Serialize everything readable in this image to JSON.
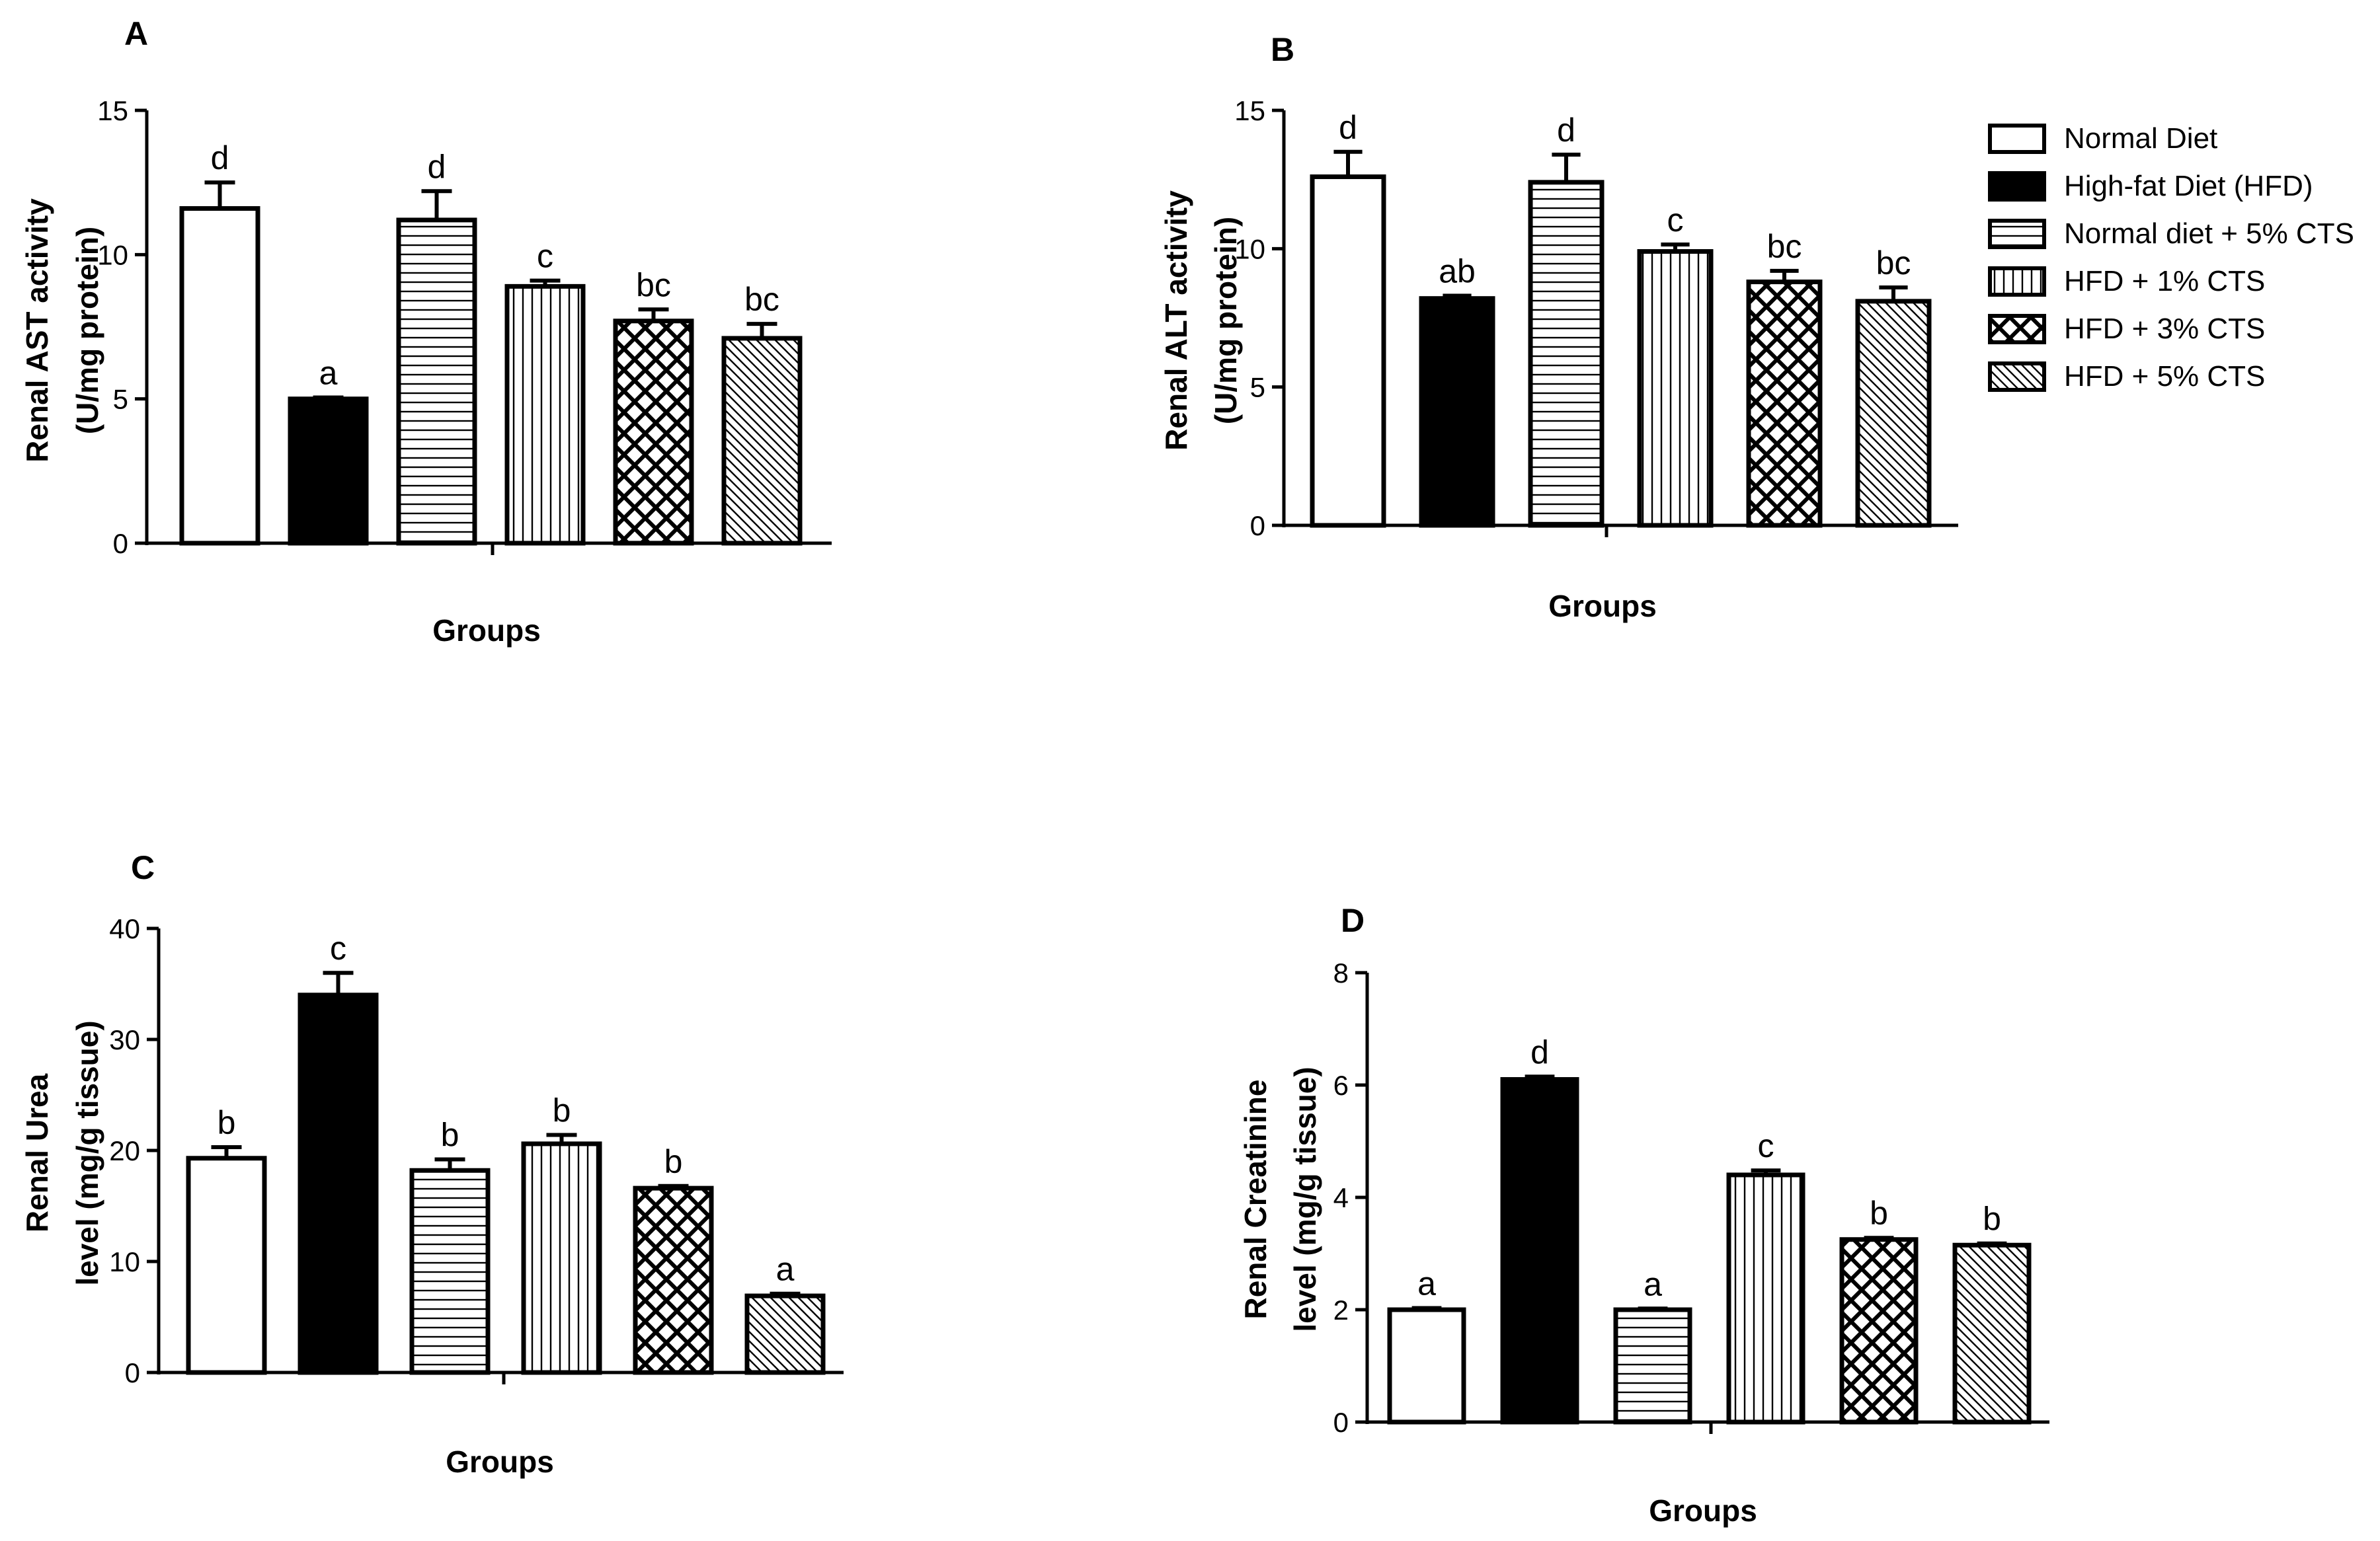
{
  "chart_data": [
    {
      "panel": "A",
      "type": "bar",
      "title": "",
      "xlabel": "Groups",
      "ylabel": [
        "Renal AST activity",
        "(U/mg protein)"
      ],
      "ylim": [
        0,
        15
      ],
      "yticks": [
        "0",
        "5",
        "10",
        "15"
      ],
      "categories": [
        "Normal Diet",
        "High-fat Diet (HFD)",
        "Normal diet + 5% CTS",
        "HFD + 1% CTS",
        "HFD + 3% CTS",
        "HFD + 5% CTS"
      ],
      "values": [
        11.6,
        5.0,
        11.2,
        8.9,
        7.7,
        7.1
      ],
      "errors": [
        0.9,
        0.05,
        1.0,
        0.2,
        0.4,
        0.5
      ],
      "significance": [
        "d",
        "a",
        "d",
        "c",
        "bc",
        "bc"
      ]
    },
    {
      "panel": "B",
      "type": "bar",
      "title": "",
      "xlabel": "Groups",
      "ylabel": [
        "Renal ALT activity",
        "(U/mg protein)"
      ],
      "ylim": [
        0,
        15
      ],
      "yticks": [
        "0",
        "5",
        "10",
        "15"
      ],
      "categories": [
        "Normal Diet",
        "High-fat Diet (HFD)",
        "Normal diet + 5% CTS",
        "HFD + 1% CTS",
        "HFD + 3% CTS",
        "HFD + 5% CTS"
      ],
      "values": [
        12.6,
        8.2,
        12.4,
        9.9,
        8.8,
        8.1
      ],
      "errors": [
        0.9,
        0.1,
        1.0,
        0.25,
        0.4,
        0.5
      ],
      "significance": [
        "d",
        "ab",
        "d",
        "c",
        "bc",
        "bc"
      ]
    },
    {
      "panel": "C",
      "type": "bar",
      "title": "",
      "xlabel": "Groups",
      "ylabel": [
        "Renal Urea",
        "level (mg/g tissue)"
      ],
      "ylim": [
        0,
        40
      ],
      "yticks": [
        "0",
        "10",
        "20",
        "30",
        "40"
      ],
      "categories": [
        "Normal Diet",
        "High-fat Diet (HFD)",
        "Normal diet + 5% CTS",
        "HFD + 1% CTS",
        "HFD + 3% CTS",
        "HFD + 5% CTS"
      ],
      "values": [
        19.3,
        34.0,
        18.2,
        20.6,
        16.6,
        6.9
      ],
      "errors": [
        1.0,
        2.0,
        1.0,
        0.8,
        0.2,
        0.2
      ],
      "significance": [
        "b",
        "c",
        "b",
        "b",
        "b",
        "a"
      ]
    },
    {
      "panel": "D",
      "type": "bar",
      "title": "",
      "xlabel": "Groups",
      "ylabel": [
        "Renal Creatinine",
        "level (mg/g tissue)"
      ],
      "ylim": [
        0,
        8
      ],
      "yticks": [
        "0",
        "2",
        "4",
        "6",
        "8"
      ],
      "categories": [
        "Normal Diet",
        "High-fat Diet (HFD)",
        "Normal diet + 5% CTS",
        "HFD + 1% CTS",
        "HFD + 3% CTS",
        "HFD + 5% CTS"
      ],
      "values": [
        2.0,
        6.1,
        2.0,
        4.4,
        3.25,
        3.15
      ],
      "errors": [
        0.03,
        0.05,
        0.02,
        0.08,
        0.03,
        0.03
      ],
      "significance": [
        "a",
        "d",
        "a",
        "c",
        "b",
        "b"
      ]
    }
  ],
  "legend": {
    "placement": "top-right",
    "entries": [
      {
        "label": "Normal Diet",
        "pattern": "white"
      },
      {
        "label": "High-fat Diet (HFD)",
        "pattern": "black"
      },
      {
        "label": "Normal diet + 5% CTS",
        "pattern": "horizontal-lines"
      },
      {
        "label": "HFD + 1% CTS",
        "pattern": "vertical-lines"
      },
      {
        "label": "HFD + 3% CTS",
        "pattern": "crosshatch"
      },
      {
        "label": "HFD + 5% CTS",
        "pattern": "diagonal-lines"
      }
    ]
  },
  "colors": {
    "stroke": "#000000",
    "background": "#ffffff"
  }
}
